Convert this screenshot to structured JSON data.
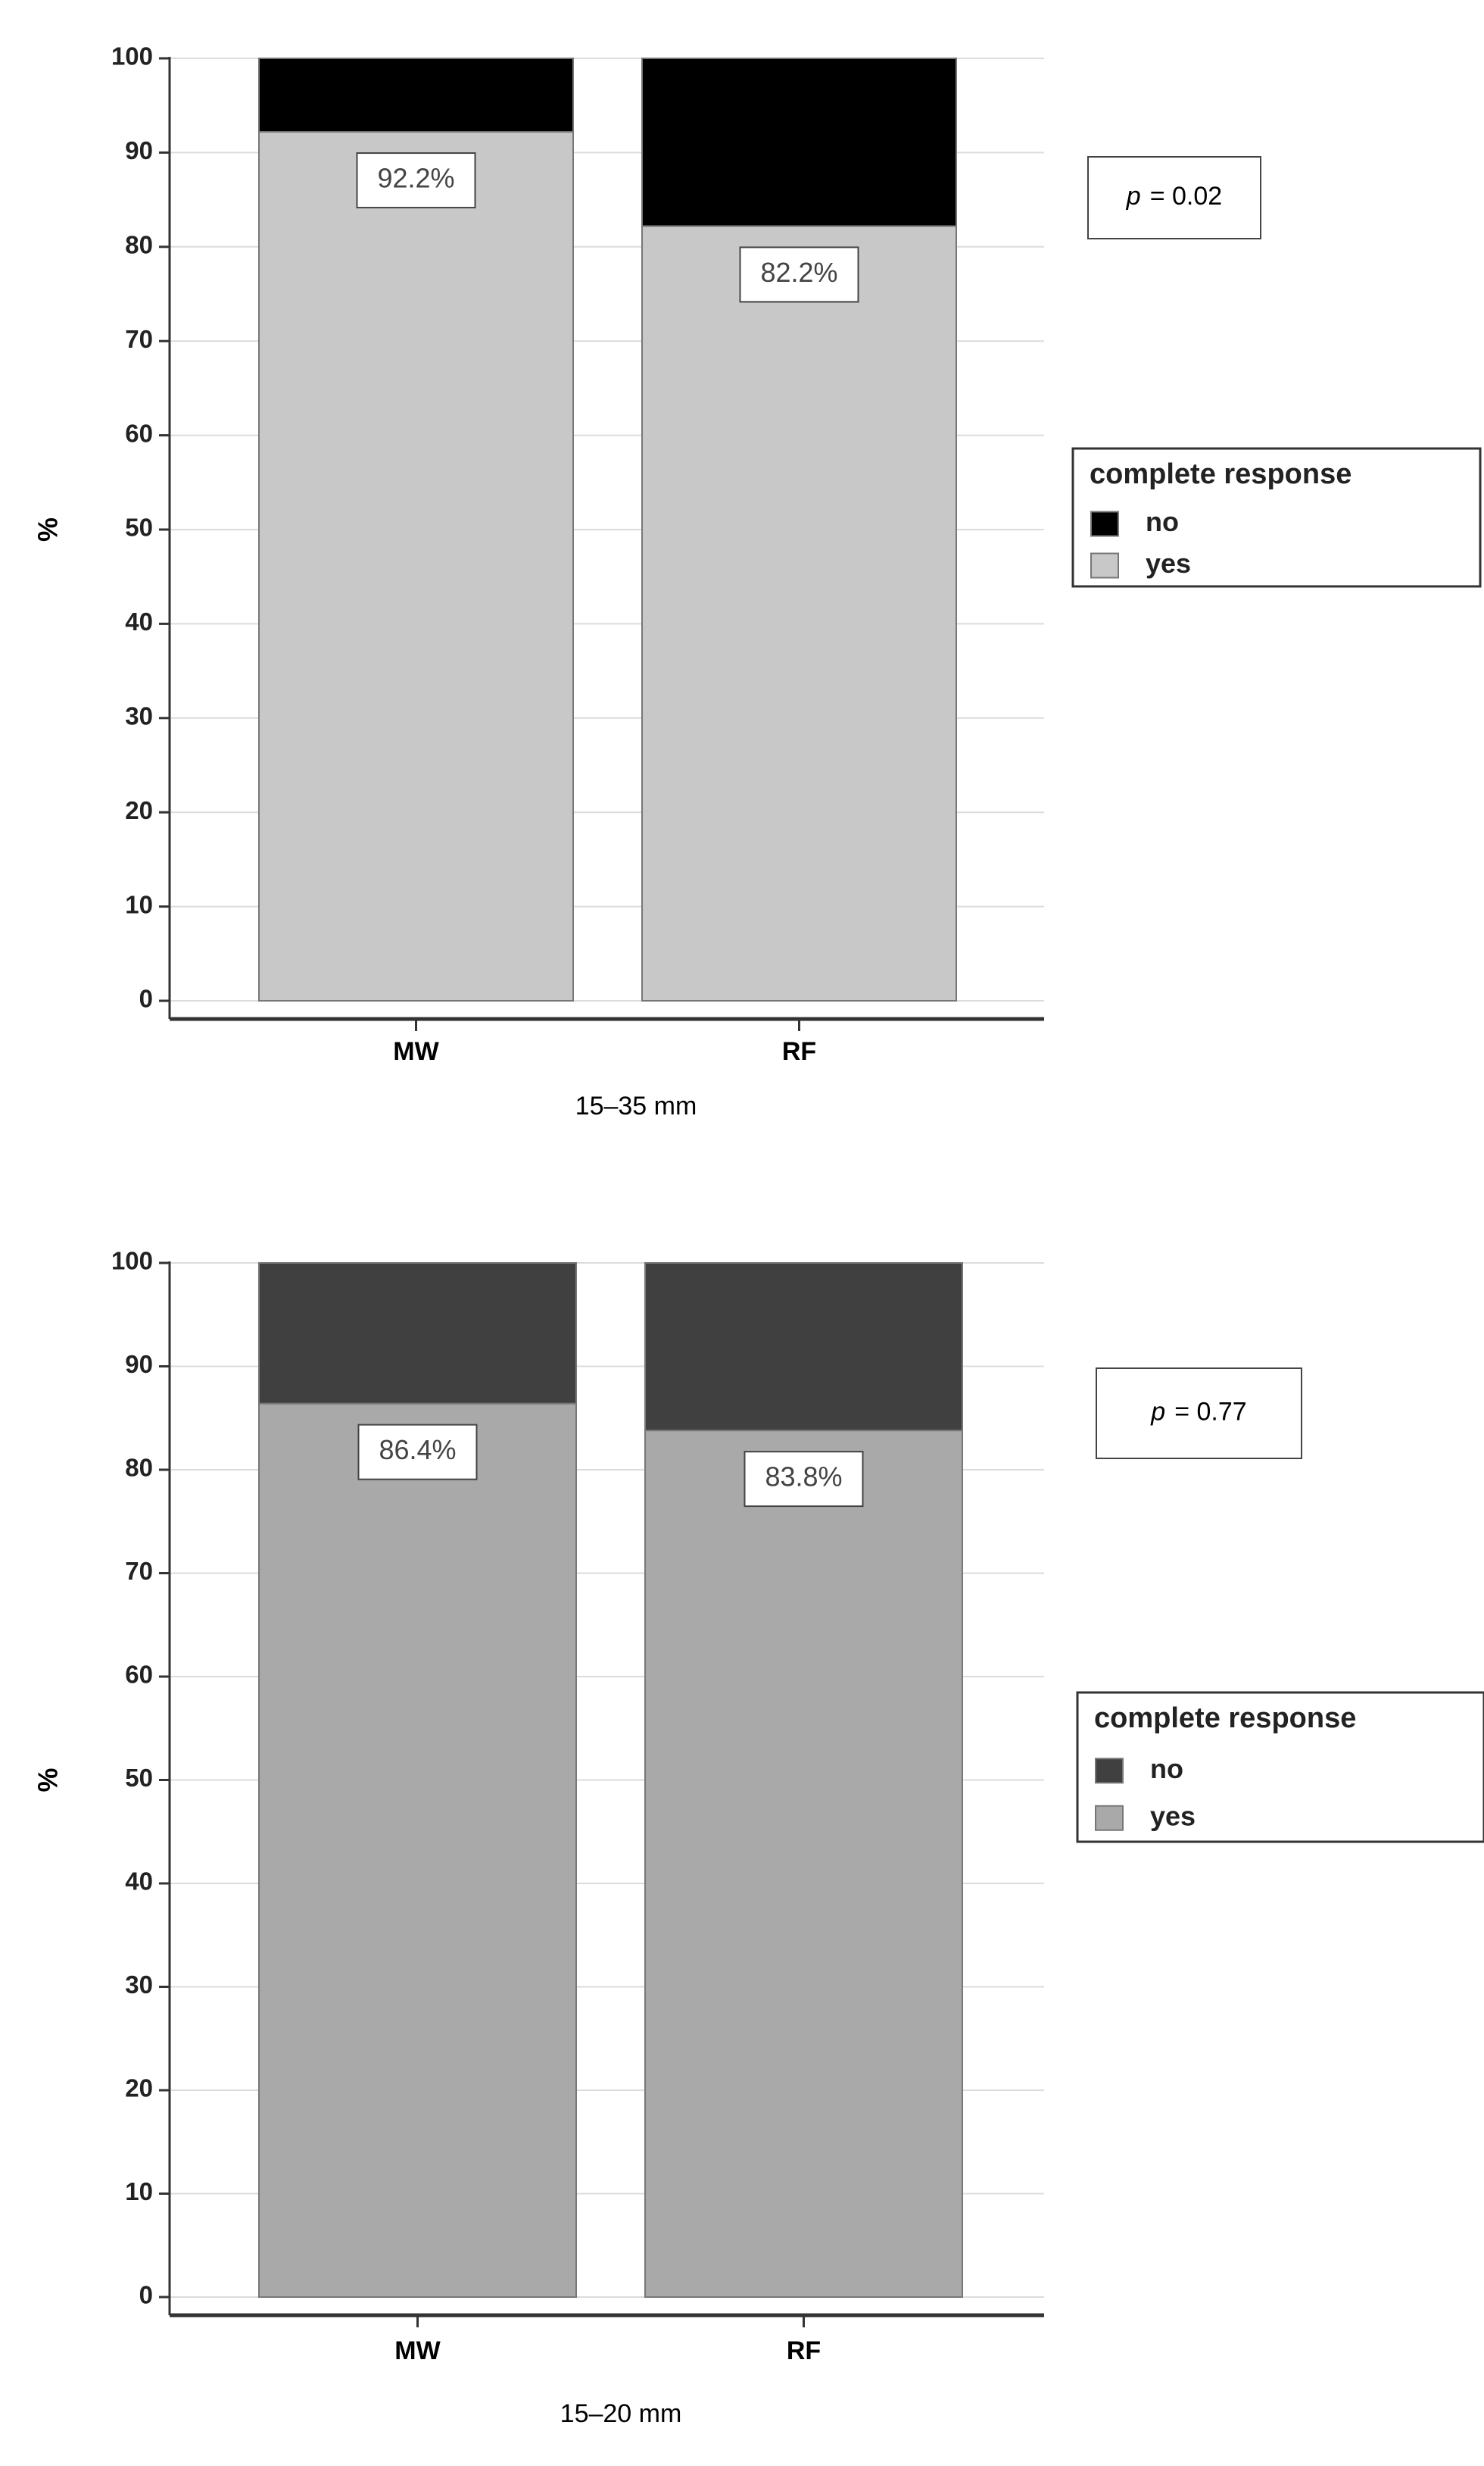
{
  "chart_data": [
    {
      "type": "stacked_bar",
      "categories": [
        "MW",
        "RF"
      ],
      "x_label": "15–35 mm",
      "y_label": "%",
      "ylim": [
        0,
        100
      ],
      "yticks": [
        0,
        10,
        20,
        30,
        40,
        50,
        60,
        70,
        80,
        90,
        100
      ],
      "grid": true,
      "legend_title": "complete response",
      "annotation": {
        "variable": "p",
        "text": "= 0.02"
      },
      "series": [
        {
          "name": "yes",
          "color": "#c8c8c8",
          "values": [
            92.2,
            82.2
          ],
          "value_labels": [
            "92.2%",
            "82.2%"
          ]
        },
        {
          "name": "no",
          "color": "#000000",
          "values": [
            7.8,
            17.8
          ]
        }
      ]
    },
    {
      "type": "stacked_bar",
      "categories": [
        "MW",
        "RF"
      ],
      "x_label": "15–20 mm",
      "y_label": "%",
      "ylim": [
        0,
        100
      ],
      "yticks": [
        0,
        10,
        20,
        30,
        40,
        50,
        60,
        70,
        80,
        90,
        100
      ],
      "grid": true,
      "legend_title": "complete response",
      "annotation": {
        "variable": "p",
        "text": "= 0.77"
      },
      "series": [
        {
          "name": "yes",
          "color": "#a9a9a9",
          "values": [
            86.4,
            83.8
          ],
          "value_labels": [
            "86.4%",
            "83.8%"
          ]
        },
        {
          "name": "no",
          "color": "#404040",
          "values": [
            13.6,
            16.2
          ]
        }
      ]
    }
  ]
}
